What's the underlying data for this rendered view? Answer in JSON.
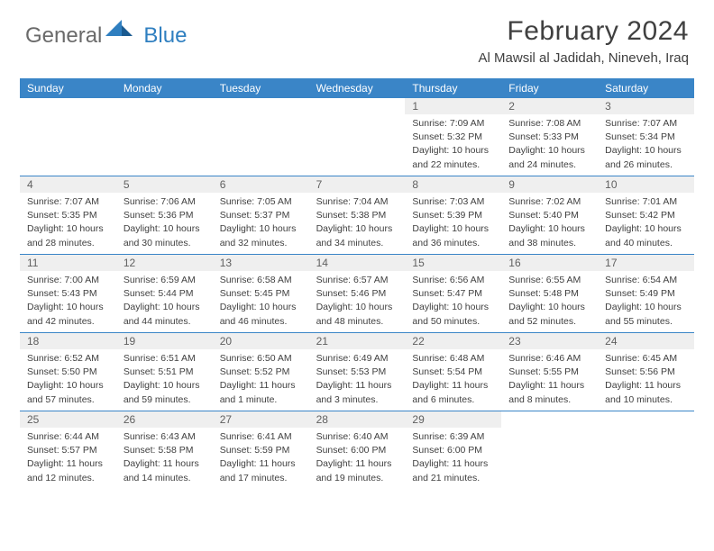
{
  "logo": {
    "text1": "General",
    "text2": "Blue"
  },
  "title": "February 2024",
  "location": "Al Mawsil al Jadidah, Nineveh, Iraq",
  "colors": {
    "header_bg": "#3a85c7",
    "date_bg": "#efefef",
    "text": "#404040",
    "logo_gray": "#6a6a6a",
    "logo_blue": "#2f7fc0"
  },
  "day_names": [
    "Sunday",
    "Monday",
    "Tuesday",
    "Wednesday",
    "Thursday",
    "Friday",
    "Saturday"
  ],
  "weeks": [
    [
      {
        "empty": true
      },
      {
        "empty": true
      },
      {
        "empty": true
      },
      {
        "empty": true
      },
      {
        "date": "1",
        "sunrise": "Sunrise: 7:09 AM",
        "sunset": "Sunset: 5:32 PM",
        "daylight1": "Daylight: 10 hours",
        "daylight2": "and 22 minutes."
      },
      {
        "date": "2",
        "sunrise": "Sunrise: 7:08 AM",
        "sunset": "Sunset: 5:33 PM",
        "daylight1": "Daylight: 10 hours",
        "daylight2": "and 24 minutes."
      },
      {
        "date": "3",
        "sunrise": "Sunrise: 7:07 AM",
        "sunset": "Sunset: 5:34 PM",
        "daylight1": "Daylight: 10 hours",
        "daylight2": "and 26 minutes."
      }
    ],
    [
      {
        "date": "4",
        "sunrise": "Sunrise: 7:07 AM",
        "sunset": "Sunset: 5:35 PM",
        "daylight1": "Daylight: 10 hours",
        "daylight2": "and 28 minutes."
      },
      {
        "date": "5",
        "sunrise": "Sunrise: 7:06 AM",
        "sunset": "Sunset: 5:36 PM",
        "daylight1": "Daylight: 10 hours",
        "daylight2": "and 30 minutes."
      },
      {
        "date": "6",
        "sunrise": "Sunrise: 7:05 AM",
        "sunset": "Sunset: 5:37 PM",
        "daylight1": "Daylight: 10 hours",
        "daylight2": "and 32 minutes."
      },
      {
        "date": "7",
        "sunrise": "Sunrise: 7:04 AM",
        "sunset": "Sunset: 5:38 PM",
        "daylight1": "Daylight: 10 hours",
        "daylight2": "and 34 minutes."
      },
      {
        "date": "8",
        "sunrise": "Sunrise: 7:03 AM",
        "sunset": "Sunset: 5:39 PM",
        "daylight1": "Daylight: 10 hours",
        "daylight2": "and 36 minutes."
      },
      {
        "date": "9",
        "sunrise": "Sunrise: 7:02 AM",
        "sunset": "Sunset: 5:40 PM",
        "daylight1": "Daylight: 10 hours",
        "daylight2": "and 38 minutes."
      },
      {
        "date": "10",
        "sunrise": "Sunrise: 7:01 AM",
        "sunset": "Sunset: 5:42 PM",
        "daylight1": "Daylight: 10 hours",
        "daylight2": "and 40 minutes."
      }
    ],
    [
      {
        "date": "11",
        "sunrise": "Sunrise: 7:00 AM",
        "sunset": "Sunset: 5:43 PM",
        "daylight1": "Daylight: 10 hours",
        "daylight2": "and 42 minutes."
      },
      {
        "date": "12",
        "sunrise": "Sunrise: 6:59 AM",
        "sunset": "Sunset: 5:44 PM",
        "daylight1": "Daylight: 10 hours",
        "daylight2": "and 44 minutes."
      },
      {
        "date": "13",
        "sunrise": "Sunrise: 6:58 AM",
        "sunset": "Sunset: 5:45 PM",
        "daylight1": "Daylight: 10 hours",
        "daylight2": "and 46 minutes."
      },
      {
        "date": "14",
        "sunrise": "Sunrise: 6:57 AM",
        "sunset": "Sunset: 5:46 PM",
        "daylight1": "Daylight: 10 hours",
        "daylight2": "and 48 minutes."
      },
      {
        "date": "15",
        "sunrise": "Sunrise: 6:56 AM",
        "sunset": "Sunset: 5:47 PM",
        "daylight1": "Daylight: 10 hours",
        "daylight2": "and 50 minutes."
      },
      {
        "date": "16",
        "sunrise": "Sunrise: 6:55 AM",
        "sunset": "Sunset: 5:48 PM",
        "daylight1": "Daylight: 10 hours",
        "daylight2": "and 52 minutes."
      },
      {
        "date": "17",
        "sunrise": "Sunrise: 6:54 AM",
        "sunset": "Sunset: 5:49 PM",
        "daylight1": "Daylight: 10 hours",
        "daylight2": "and 55 minutes."
      }
    ],
    [
      {
        "date": "18",
        "sunrise": "Sunrise: 6:52 AM",
        "sunset": "Sunset: 5:50 PM",
        "daylight1": "Daylight: 10 hours",
        "daylight2": "and 57 minutes."
      },
      {
        "date": "19",
        "sunrise": "Sunrise: 6:51 AM",
        "sunset": "Sunset: 5:51 PM",
        "daylight1": "Daylight: 10 hours",
        "daylight2": "and 59 minutes."
      },
      {
        "date": "20",
        "sunrise": "Sunrise: 6:50 AM",
        "sunset": "Sunset: 5:52 PM",
        "daylight1": "Daylight: 11 hours",
        "daylight2": "and 1 minute."
      },
      {
        "date": "21",
        "sunrise": "Sunrise: 6:49 AM",
        "sunset": "Sunset: 5:53 PM",
        "daylight1": "Daylight: 11 hours",
        "daylight2": "and 3 minutes."
      },
      {
        "date": "22",
        "sunrise": "Sunrise: 6:48 AM",
        "sunset": "Sunset: 5:54 PM",
        "daylight1": "Daylight: 11 hours",
        "daylight2": "and 6 minutes."
      },
      {
        "date": "23",
        "sunrise": "Sunrise: 6:46 AM",
        "sunset": "Sunset: 5:55 PM",
        "daylight1": "Daylight: 11 hours",
        "daylight2": "and 8 minutes."
      },
      {
        "date": "24",
        "sunrise": "Sunrise: 6:45 AM",
        "sunset": "Sunset: 5:56 PM",
        "daylight1": "Daylight: 11 hours",
        "daylight2": "and 10 minutes."
      }
    ],
    [
      {
        "date": "25",
        "sunrise": "Sunrise: 6:44 AM",
        "sunset": "Sunset: 5:57 PM",
        "daylight1": "Daylight: 11 hours",
        "daylight2": "and 12 minutes."
      },
      {
        "date": "26",
        "sunrise": "Sunrise: 6:43 AM",
        "sunset": "Sunset: 5:58 PM",
        "daylight1": "Daylight: 11 hours",
        "daylight2": "and 14 minutes."
      },
      {
        "date": "27",
        "sunrise": "Sunrise: 6:41 AM",
        "sunset": "Sunset: 5:59 PM",
        "daylight1": "Daylight: 11 hours",
        "daylight2": "and 17 minutes."
      },
      {
        "date": "28",
        "sunrise": "Sunrise: 6:40 AM",
        "sunset": "Sunset: 6:00 PM",
        "daylight1": "Daylight: 11 hours",
        "daylight2": "and 19 minutes."
      },
      {
        "date": "29",
        "sunrise": "Sunrise: 6:39 AM",
        "sunset": "Sunset: 6:00 PM",
        "daylight1": "Daylight: 11 hours",
        "daylight2": "and 21 minutes."
      },
      {
        "empty": true
      },
      {
        "empty": true
      }
    ]
  ]
}
